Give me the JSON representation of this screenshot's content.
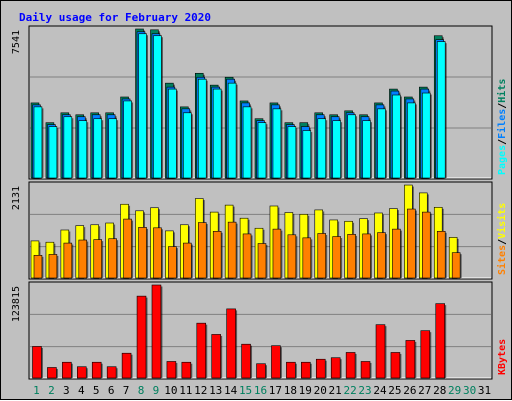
{
  "colors": {
    "background": "#c0c0c0",
    "pages": "#00ffff",
    "files": "#0080ff",
    "hits": "#00805f",
    "sites": "#ff8000",
    "visits": "#ffff00",
    "kbytes": "#ff0000",
    "title": "#0000ff",
    "weekday_day": "#000000",
    "weekend_day": "#00805f"
  },
  "chart_data": [
    {
      "type": "bar",
      "title": "Daily usage for February 2020",
      "panel": "pages-files-hits",
      "ymax_label": "7541",
      "ylim": [
        0,
        7541
      ],
      "grid": true,
      "legend_placement": "right (vertical)",
      "legend": [
        {
          "key": "pages",
          "label": "Pages",
          "color": "#00ffff"
        },
        {
          "key": "sep1",
          "label": "/",
          "color": "#000000"
        },
        {
          "key": "files",
          "label": "Files",
          "color": "#0080ff"
        },
        {
          "key": "sep2",
          "label": "/",
          "color": "#000000"
        },
        {
          "key": "hits",
          "label": "Hits",
          "color": "#00805f"
        }
      ],
      "categories": [
        "1",
        "2",
        "3",
        "4",
        "5",
        "6",
        "7",
        "8",
        "9",
        "10",
        "11",
        "12",
        "13",
        "14",
        "15",
        "16",
        "17",
        "18",
        "19",
        "20",
        "21",
        "22",
        "23",
        "24",
        "25",
        "26",
        "27",
        "28",
        "29",
        "30",
        "31"
      ],
      "series": [
        {
          "name": "Hits",
          "color": "#00805f",
          "values": [
            3800,
            2800,
            3300,
            3200,
            3300,
            3300,
            4100,
            7541,
            7500,
            4800,
            3600,
            5300,
            4700,
            5100,
            3900,
            3000,
            3800,
            2800,
            2800,
            3300,
            3200,
            3400,
            3200,
            3800,
            4500,
            4100,
            4600,
            7200,
            null,
            null,
            null
          ]
        },
        {
          "name": "Files",
          "color": "#0080ff",
          "values": [
            3700,
            2700,
            3200,
            3100,
            3200,
            3200,
            4000,
            7400,
            7300,
            4600,
            3500,
            5100,
            4600,
            5000,
            3800,
            2900,
            3700,
            2700,
            2600,
            3200,
            3100,
            3300,
            3100,
            3700,
            4400,
            4000,
            4500,
            7000,
            null,
            null,
            null
          ]
        },
        {
          "name": "Pages",
          "color": "#00ffff",
          "values": [
            3600,
            2600,
            3100,
            2900,
            3000,
            3000,
            3900,
            7300,
            7200,
            4500,
            3300,
            5000,
            4500,
            4800,
            3600,
            2800,
            3500,
            2600,
            2400,
            3000,
            2900,
            3200,
            2900,
            3500,
            4200,
            3800,
            4300,
            6900,
            null,
            null,
            null
          ]
        }
      ]
    },
    {
      "type": "bar",
      "panel": "sites-visits",
      "ymax_label": "2131",
      "ylim": [
        0,
        2131
      ],
      "grid": true,
      "legend_placement": "right (vertical)",
      "legend": [
        {
          "key": "sites",
          "label": "Sites",
          "color": "#ff8000"
        },
        {
          "key": "sep3",
          "label": "/",
          "color": "#000000"
        },
        {
          "key": "visits",
          "label": "Visits",
          "color": "#ffff00"
        }
      ],
      "categories": [
        "1",
        "2",
        "3",
        "4",
        "5",
        "6",
        "7",
        "8",
        "9",
        "10",
        "11",
        "12",
        "13",
        "14",
        "15",
        "16",
        "17",
        "18",
        "19",
        "20",
        "21",
        "22",
        "23",
        "24",
        "25",
        "26",
        "27",
        "28",
        "29",
        "30",
        "31"
      ],
      "series": [
        {
          "name": "Visits",
          "color": "#ffff00",
          "values": [
            850,
            820,
            1100,
            1200,
            1220,
            1260,
            1690,
            1540,
            1610,
            1080,
            1220,
            1820,
            1510,
            1670,
            1370,
            1140,
            1650,
            1500,
            1460,
            1560,
            1330,
            1300,
            1360,
            1490,
            1590,
            2130,
            1950,
            1620,
            930,
            null,
            null
          ]
        },
        {
          "name": "Sites",
          "color": "#ff8000",
          "values": [
            520,
            540,
            800,
            870,
            880,
            900,
            1350,
            1160,
            1150,
            720,
            800,
            1270,
            1070,
            1280,
            1010,
            790,
            1120,
            990,
            920,
            1020,
            950,
            1000,
            1010,
            1040,
            1120,
            1580,
            1510,
            1070,
            580,
            null,
            null
          ]
        }
      ]
    },
    {
      "type": "bar",
      "panel": "kbytes",
      "ymax_label": "123815",
      "ylim": [
        0,
        123815
      ],
      "grid": true,
      "legend_placement": "right (vertical)",
      "legend": [
        {
          "key": "kbytes",
          "label": "KBytes",
          "color": "#ff0000"
        }
      ],
      "categories": [
        "1",
        "2",
        "3",
        "4",
        "5",
        "6",
        "7",
        "8",
        "9",
        "10",
        "11",
        "12",
        "13",
        "14",
        "15",
        "16",
        "17",
        "18",
        "19",
        "20",
        "21",
        "22",
        "23",
        "24",
        "25",
        "26",
        "27",
        "28",
        "29",
        "30",
        "31"
      ],
      "series": [
        {
          "name": "KBytes",
          "color": "#ff0000",
          "values": [
            42000,
            14000,
            21000,
            15000,
            21000,
            15000,
            33000,
            109000,
            123815,
            22000,
            21000,
            73000,
            58000,
            92000,
            45000,
            19000,
            43000,
            21000,
            21000,
            25000,
            27000,
            34000,
            22000,
            71000,
            34000,
            50000,
            63000,
            99000,
            null,
            null,
            null
          ]
        }
      ]
    }
  ],
  "x_axis": {
    "days": [
      "1",
      "2",
      "3",
      "4",
      "5",
      "6",
      "7",
      "8",
      "9",
      "10",
      "11",
      "12",
      "13",
      "14",
      "15",
      "16",
      "17",
      "18",
      "19",
      "20",
      "21",
      "22",
      "23",
      "24",
      "25",
      "26",
      "27",
      "28",
      "29",
      "30",
      "31"
    ],
    "weekend": [
      true,
      true,
      false,
      false,
      false,
      false,
      false,
      true,
      true,
      false,
      false,
      false,
      false,
      false,
      true,
      true,
      false,
      false,
      false,
      false,
      false,
      true,
      true,
      false,
      false,
      false,
      false,
      false,
      true,
      true,
      false
    ]
  }
}
